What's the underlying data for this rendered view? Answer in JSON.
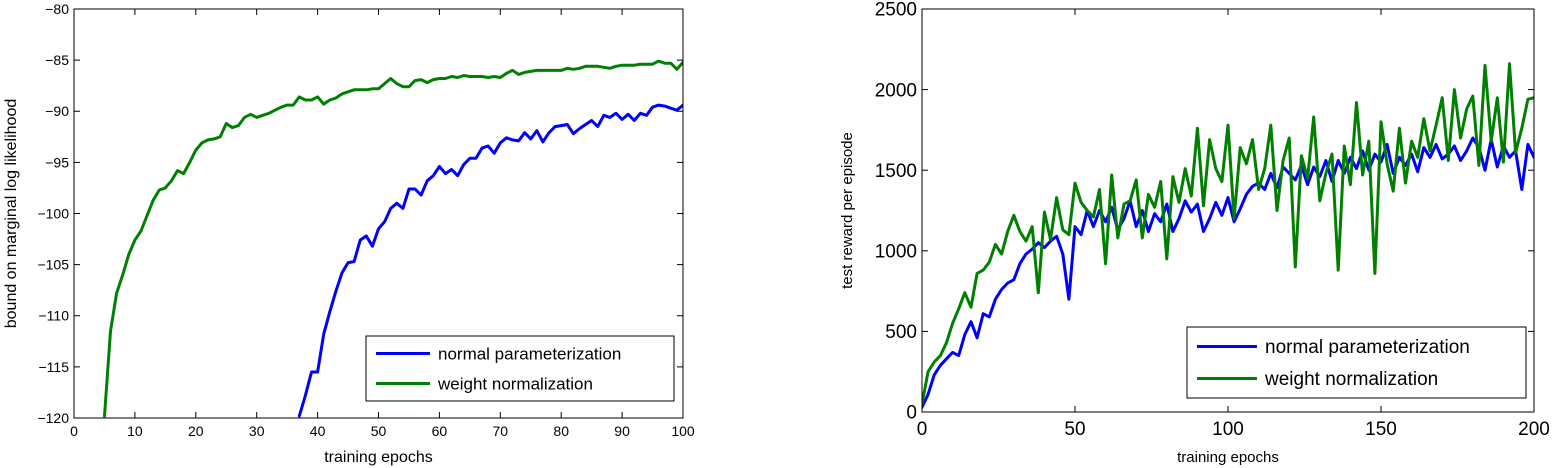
{
  "chart_data": [
    {
      "type": "line",
      "xlabel": "training epochs",
      "ylabel": "bound on marginal log likelihood",
      "xlim": [
        0,
        100
      ],
      "ylim": [
        -120,
        -80
      ],
      "xticks": [
        0,
        10,
        20,
        30,
        40,
        50,
        60,
        70,
        80,
        90,
        100
      ],
      "yticks": [
        -120,
        -115,
        -110,
        -105,
        -100,
        -95,
        -90,
        -85,
        -80
      ],
      "ytick_labels": [
        "−120",
        "−115",
        "−110",
        "−105",
        "−100",
        "−95",
        "−90",
        "−85",
        "−80"
      ],
      "grid": false,
      "legend_position": "bottom-right",
      "series": [
        {
          "name": "normal parameterization",
          "color": "#0000ff",
          "x": [
            37,
            38,
            39,
            40,
            41,
            42,
            43,
            44,
            45,
            46,
            47,
            48,
            49,
            50,
            51,
            52,
            53,
            54,
            55,
            56,
            57,
            58,
            59,
            60,
            61,
            62,
            63,
            64,
            65,
            66,
            67,
            68,
            69,
            70,
            71,
            72,
            73,
            74,
            75,
            76,
            77,
            78,
            79,
            80,
            81,
            82,
            83,
            84,
            85,
            86,
            87,
            88,
            89,
            90,
            91,
            92,
            93,
            94,
            95,
            96,
            97,
            98,
            99,
            100
          ],
          "values": [
            -119.8,
            -117.8,
            -115.5,
            -115.5,
            -111.8,
            -109.6,
            -107.6,
            -105.8,
            -104.8,
            -104.7,
            -102.6,
            -102.2,
            -103.2,
            -101.5,
            -100.8,
            -99.5,
            -99.0,
            -99.5,
            -97.6,
            -97.6,
            -98.2,
            -96.8,
            -96.3,
            -95.4,
            -96.1,
            -95.7,
            -96.3,
            -95.2,
            -94.6,
            -94.6,
            -93.6,
            -93.4,
            -94.1,
            -93.1,
            -92.6,
            -92.8,
            -92.9,
            -92.1,
            -92.7,
            -91.9,
            -93.0,
            -92.1,
            -91.5,
            -91.4,
            -91.3,
            -92.2,
            -91.7,
            -91.3,
            -90.9,
            -91.5,
            -90.4,
            -90.6,
            -90.2,
            -90.8,
            -90.3,
            -90.9,
            -90.2,
            -90.4,
            -89.6,
            -89.4,
            -89.5,
            -89.7,
            -89.9,
            -89.4
          ]
        },
        {
          "name": "weight normalization",
          "color": "#008000",
          "x": [
            5,
            6,
            7,
            8,
            9,
            10,
            11,
            12,
            13,
            14,
            15,
            16,
            17,
            18,
            19,
            20,
            21,
            22,
            23,
            24,
            25,
            26,
            27,
            28,
            29,
            30,
            31,
            32,
            33,
            34,
            35,
            36,
            37,
            38,
            39,
            40,
            41,
            42,
            43,
            44,
            45,
            46,
            47,
            48,
            49,
            50,
            51,
            52,
            53,
            54,
            55,
            56,
            57,
            58,
            59,
            60,
            61,
            62,
            63,
            64,
            65,
            66,
            67,
            68,
            69,
            70,
            71,
            72,
            73,
            74,
            75,
            76,
            77,
            78,
            79,
            80,
            81,
            82,
            83,
            84,
            85,
            86,
            87,
            88,
            89,
            90,
            91,
            92,
            93,
            94,
            95,
            96,
            97,
            98,
            99,
            100
          ],
          "values": [
            -119.8,
            -111.5,
            -107.8,
            -106.0,
            -104.0,
            -102.6,
            -101.7,
            -100.2,
            -98.7,
            -97.7,
            -97.5,
            -96.8,
            -95.8,
            -96.1,
            -95.0,
            -93.8,
            -93.1,
            -92.8,
            -92.7,
            -92.5,
            -91.2,
            -91.6,
            -91.4,
            -90.6,
            -90.3,
            -90.6,
            -90.4,
            -90.2,
            -89.9,
            -89.6,
            -89.4,
            -89.4,
            -88.6,
            -88.9,
            -88.9,
            -88.6,
            -89.3,
            -88.9,
            -88.7,
            -88.3,
            -88.1,
            -87.9,
            -87.9,
            -87.9,
            -87.8,
            -87.8,
            -87.3,
            -86.8,
            -87.3,
            -87.6,
            -87.6,
            -87.0,
            -86.9,
            -87.2,
            -86.9,
            -86.8,
            -86.8,
            -86.6,
            -86.7,
            -86.5,
            -86.6,
            -86.6,
            -86.6,
            -86.7,
            -86.6,
            -86.7,
            -86.3,
            -86.0,
            -86.4,
            -86.2,
            -86.1,
            -86.0,
            -86.0,
            -86.0,
            -86.0,
            -86.0,
            -85.8,
            -85.9,
            -85.8,
            -85.6,
            -85.6,
            -85.6,
            -85.7,
            -85.8,
            -85.6,
            -85.5,
            -85.5,
            -85.5,
            -85.4,
            -85.4,
            -85.4,
            -85.1,
            -85.3,
            -85.3,
            -85.9,
            -85.2
          ]
        }
      ]
    },
    {
      "type": "line",
      "xlabel": "training epochs",
      "ylabel": "test reward per episode",
      "xlim": [
        0,
        200
      ],
      "ylim": [
        0,
        2500
      ],
      "xticks": [
        0,
        50,
        100,
        150,
        200
      ],
      "yticks": [
        0,
        500,
        1000,
        1500,
        2000,
        2500
      ],
      "ytick_labels": [
        "0",
        "500",
        "1000",
        "1500",
        "2000",
        "2500"
      ],
      "grid": false,
      "legend_position": "bottom-right",
      "series": [
        {
          "name": "normal parameterization",
          "color": "#0000ff",
          "x": [
            0,
            2,
            4,
            6,
            8,
            10,
            12,
            14,
            16,
            18,
            20,
            22,
            24,
            26,
            28,
            30,
            32,
            34,
            36,
            38,
            40,
            42,
            44,
            46,
            48,
            50,
            52,
            54,
            56,
            58,
            60,
            62,
            64,
            66,
            68,
            70,
            72,
            74,
            76,
            78,
            80,
            82,
            84,
            86,
            88,
            90,
            92,
            94,
            96,
            98,
            100,
            102,
            104,
            106,
            108,
            110,
            112,
            114,
            116,
            118,
            120,
            122,
            124,
            126,
            128,
            130,
            132,
            134,
            136,
            138,
            140,
            142,
            144,
            146,
            148,
            150,
            152,
            154,
            156,
            158,
            160,
            162,
            164,
            166,
            168,
            170,
            172,
            174,
            176,
            178,
            180,
            182,
            184,
            186,
            188,
            190,
            192,
            194,
            196,
            198,
            200
          ],
          "values": [
            30,
            110,
            230,
            290,
            330,
            370,
            350,
            480,
            560,
            460,
            610,
            590,
            700,
            760,
            800,
            820,
            920,
            980,
            1010,
            1050,
            1020,
            1060,
            1090,
            980,
            700,
            1150,
            1100,
            1250,
            1150,
            1250,
            1180,
            1270,
            1130,
            1200,
            1310,
            1150,
            1250,
            1120,
            1230,
            1180,
            1290,
            1120,
            1200,
            1310,
            1240,
            1290,
            1120,
            1200,
            1300,
            1220,
            1330,
            1180,
            1260,
            1350,
            1400,
            1420,
            1380,
            1480,
            1390,
            1520,
            1480,
            1440,
            1530,
            1410,
            1520,
            1460,
            1560,
            1430,
            1560,
            1480,
            1580,
            1510,
            1620,
            1500,
            1600,
            1550,
            1660,
            1480,
            1580,
            1530,
            1600,
            1490,
            1640,
            1580,
            1660,
            1570,
            1600,
            1650,
            1560,
            1620,
            1700,
            1640,
            1500,
            1690,
            1520,
            1650,
            1580,
            1620,
            1380,
            1660,
            1580
          ]
        },
        {
          "name": "weight normalization",
          "color": "#008000",
          "x": [
            0,
            2,
            4,
            6,
            8,
            10,
            12,
            14,
            16,
            18,
            20,
            22,
            24,
            26,
            28,
            30,
            32,
            34,
            36,
            38,
            40,
            42,
            44,
            46,
            48,
            50,
            52,
            54,
            56,
            58,
            60,
            62,
            64,
            66,
            68,
            70,
            72,
            74,
            76,
            78,
            80,
            82,
            84,
            86,
            88,
            90,
            92,
            94,
            96,
            98,
            100,
            102,
            104,
            106,
            108,
            110,
            112,
            114,
            116,
            118,
            120,
            122,
            124,
            126,
            128,
            130,
            132,
            134,
            136,
            138,
            140,
            142,
            144,
            146,
            148,
            150,
            152,
            154,
            156,
            158,
            160,
            162,
            164,
            166,
            168,
            170,
            172,
            174,
            176,
            178,
            180,
            182,
            184,
            186,
            188,
            190,
            192,
            194,
            196,
            198,
            200
          ],
          "values": [
            50,
            250,
            310,
            350,
            430,
            550,
            640,
            740,
            650,
            860,
            880,
            930,
            1040,
            980,
            1120,
            1220,
            1120,
            1060,
            1150,
            740,
            1240,
            1070,
            1330,
            1130,
            1100,
            1420,
            1300,
            1250,
            1210,
            1380,
            920,
            1470,
            1080,
            1290,
            1310,
            1440,
            1080,
            1350,
            1270,
            1430,
            950,
            1460,
            1300,
            1510,
            1340,
            1760,
            1280,
            1690,
            1510,
            1430,
            1780,
            1200,
            1640,
            1540,
            1690,
            1380,
            1510,
            1780,
            1250,
            1560,
            1700,
            900,
            1590,
            1450,
            1830,
            1310,
            1480,
            1600,
            880,
            1650,
            1410,
            1920,
            1470,
            1680,
            860,
            1800,
            1540,
            1370,
            1760,
            1420,
            1680,
            1580,
            1820,
            1620,
            1780,
            1950,
            1560,
            2000,
            1700,
            1880,
            1960,
            1530,
            2150,
            1680,
            1950,
            1550,
            2160,
            1610,
            1760,
            1940,
            1950
          ]
        }
      ]
    }
  ]
}
